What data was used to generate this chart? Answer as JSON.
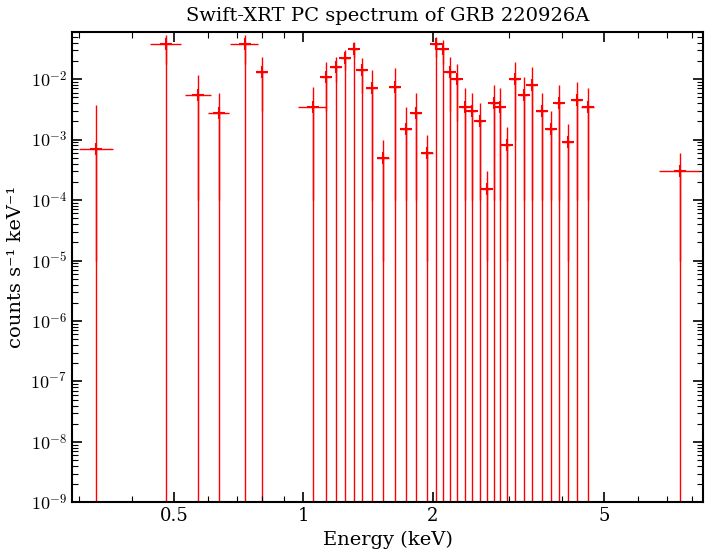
{
  "title": "Swift-XRT PC spectrum of GRB 220926A",
  "xlabel": "Energy (keV)",
  "ylabel": "counts s⁻¹ keV⁻¹",
  "xlim": [
    0.29,
    8.5
  ],
  "ylim": [
    1e-09,
    0.06
  ],
  "background_color": "#ffffff",
  "plot_bg_color": "#ffffff",
  "frame_color": "#000000",
  "data_color": "#ff0000",
  "data_points": [
    {
      "energy": 0.33,
      "value": 0.0007,
      "xerr": 0.03,
      "yerr_lo": 0.00069,
      "yerr_hi": 0.003
    },
    {
      "energy": 0.48,
      "value": 0.038,
      "xerr": 0.04,
      "yerr_lo": 0.02,
      "yerr_hi": 0.015
    },
    {
      "energy": 0.57,
      "value": 0.0055,
      "xerr": 0.04,
      "yerr_lo": 0.0054,
      "yerr_hi": 0.006
    },
    {
      "energy": 0.635,
      "value": 0.0028,
      "xerr": 0.035,
      "yerr_lo": 0.0027,
      "yerr_hi": 0.003
    },
    {
      "energy": 0.73,
      "value": 0.038,
      "xerr": 0.055,
      "yerr_lo": 0.02,
      "yerr_hi": 0.015
    },
    {
      "energy": 0.8,
      "value": 0.013,
      "xerr": 0.025,
      "yerr_lo": 0.01,
      "yerr_hi": 0.01
    },
    {
      "energy": 1.05,
      "value": 0.0035,
      "xerr": 0.08,
      "yerr_lo": 0.0034,
      "yerr_hi": 0.004
    },
    {
      "energy": 1.13,
      "value": 0.011,
      "xerr": 0.03,
      "yerr_lo": 0.008,
      "yerr_hi": 0.008
    },
    {
      "energy": 1.19,
      "value": 0.016,
      "xerr": 0.03,
      "yerr_lo": 0.007,
      "yerr_hi": 0.007
    },
    {
      "energy": 1.25,
      "value": 0.022,
      "xerr": 0.03,
      "yerr_lo": 0.008,
      "yerr_hi": 0.008
    },
    {
      "energy": 1.31,
      "value": 0.032,
      "xerr": 0.03,
      "yerr_lo": 0.009,
      "yerr_hi": 0.009
    },
    {
      "energy": 1.37,
      "value": 0.014,
      "xerr": 0.03,
      "yerr_lo": 0.008,
      "yerr_hi": 0.008
    },
    {
      "energy": 1.44,
      "value": 0.007,
      "xerr": 0.04,
      "yerr_lo": 0.0069,
      "yerr_hi": 0.007
    },
    {
      "energy": 1.53,
      "value": 0.0005,
      "xerr": 0.05,
      "yerr_lo": 0.00049,
      "yerr_hi": 0.0005
    },
    {
      "energy": 1.63,
      "value": 0.0075,
      "xerr": 0.05,
      "yerr_lo": 0.0074,
      "yerr_hi": 0.0075
    },
    {
      "energy": 1.73,
      "value": 0.0015,
      "xerr": 0.05,
      "yerr_lo": 0.0014,
      "yerr_hi": 0.002
    },
    {
      "energy": 1.83,
      "value": 0.0028,
      "xerr": 0.05,
      "yerr_lo": 0.0027,
      "yerr_hi": 0.003
    },
    {
      "energy": 1.94,
      "value": 0.0006,
      "xerr": 0.06,
      "yerr_lo": 0.00059,
      "yerr_hi": 0.0006
    },
    {
      "energy": 2.03,
      "value": 0.038,
      "xerr": 0.04,
      "yerr_lo": 0.015,
      "yerr_hi": 0.012
    },
    {
      "energy": 2.11,
      "value": 0.032,
      "xerr": 0.04,
      "yerr_lo": 0.014,
      "yerr_hi": 0.012
    },
    {
      "energy": 2.19,
      "value": 0.013,
      "xerr": 0.04,
      "yerr_lo": 0.01,
      "yerr_hi": 0.01
    },
    {
      "energy": 2.27,
      "value": 0.01,
      "xerr": 0.04,
      "yerr_lo": 0.008,
      "yerr_hi": 0.008
    },
    {
      "energy": 2.37,
      "value": 0.0035,
      "xerr": 0.05,
      "yerr_lo": 0.0034,
      "yerr_hi": 0.0035
    },
    {
      "energy": 2.47,
      "value": 0.003,
      "xerr": 0.05,
      "yerr_lo": 0.0029,
      "yerr_hi": 0.003
    },
    {
      "energy": 2.57,
      "value": 0.002,
      "xerr": 0.05,
      "yerr_lo": 0.0019,
      "yerr_hi": 0.002
    },
    {
      "energy": 2.67,
      "value": 0.00015,
      "xerr": 0.05,
      "yerr_lo": 0.00014,
      "yerr_hi": 0.00015
    },
    {
      "energy": 2.77,
      "value": 0.004,
      "xerr": 0.05,
      "yerr_lo": 0.0039,
      "yerr_hi": 0.004
    },
    {
      "energy": 2.87,
      "value": 0.0035,
      "xerr": 0.05,
      "yerr_lo": 0.0034,
      "yerr_hi": 0.0035
    },
    {
      "energy": 2.97,
      "value": 0.0008,
      "xerr": 0.05,
      "yerr_lo": 0.00079,
      "yerr_hi": 0.0008
    },
    {
      "energy": 3.1,
      "value": 0.01,
      "xerr": 0.08,
      "yerr_lo": 0.009,
      "yerr_hi": 0.009
    },
    {
      "energy": 3.25,
      "value": 0.0055,
      "xerr": 0.07,
      "yerr_lo": 0.0054,
      "yerr_hi": 0.0055
    },
    {
      "energy": 3.4,
      "value": 0.008,
      "xerr": 0.08,
      "yerr_lo": 0.0079,
      "yerr_hi": 0.008
    },
    {
      "energy": 3.58,
      "value": 0.003,
      "xerr": 0.1,
      "yerr_lo": 0.0029,
      "yerr_hi": 0.003
    },
    {
      "energy": 3.76,
      "value": 0.0015,
      "xerr": 0.09,
      "yerr_lo": 0.0014,
      "yerr_hi": 0.0015
    },
    {
      "energy": 3.92,
      "value": 0.004,
      "xerr": 0.07,
      "yerr_lo": 0.0039,
      "yerr_hi": 0.004
    },
    {
      "energy": 4.12,
      "value": 0.0009,
      "xerr": 0.12,
      "yerr_lo": 0.00089,
      "yerr_hi": 0.0009
    },
    {
      "energy": 4.32,
      "value": 0.0045,
      "xerr": 0.1,
      "yerr_lo": 0.0044,
      "yerr_hi": 0.0045
    },
    {
      "energy": 4.58,
      "value": 0.0035,
      "xerr": 0.15,
      "yerr_lo": 0.0034,
      "yerr_hi": 0.0035
    },
    {
      "energy": 7.5,
      "value": 0.0003,
      "xerr": 0.8,
      "yerr_lo": 0.00029,
      "yerr_hi": 0.0003
    }
  ],
  "lower_limit_value": 1e-09,
  "xtick_major": [
    0.5,
    1.0,
    2.0,
    5.0
  ],
  "xtick_major_labels": [
    "0.5",
    "1",
    "2",
    "5"
  ],
  "tick_label_fontsize": 13,
  "axis_label_fontsize": 14,
  "title_fontsize": 14
}
